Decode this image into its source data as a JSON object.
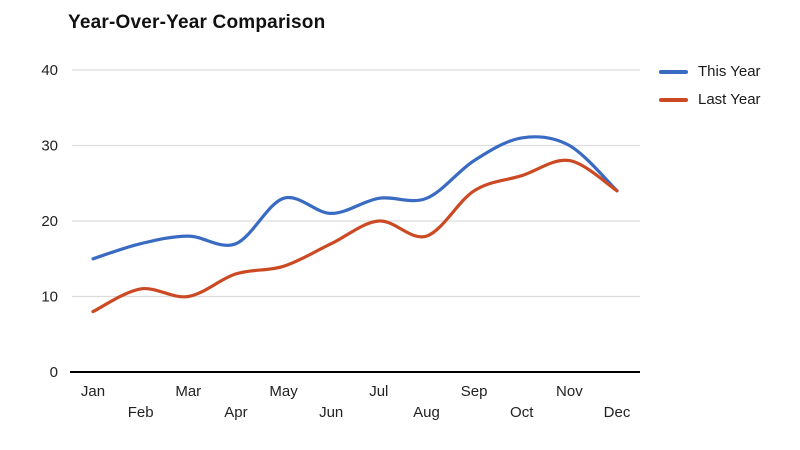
{
  "chart_data": {
    "type": "line",
    "title": "Year-Over-Year Comparison",
    "categories": [
      "Jan",
      "Feb",
      "Mar",
      "Apr",
      "May",
      "Jun",
      "Jul",
      "Aug",
      "Sep",
      "Oct",
      "Nov",
      "Dec"
    ],
    "series": [
      {
        "name": "This Year",
        "color": "#3a6bc3",
        "values": [
          15,
          17,
          18,
          17,
          23,
          21,
          23,
          23,
          28,
          31,
          30,
          24
        ]
      },
      {
        "name": "Last Year",
        "color": "#cb4a24",
        "values": [
          8,
          11,
          10,
          13,
          14,
          17,
          20,
          18,
          24,
          26,
          28,
          24
        ]
      }
    ],
    "y_ticks": [
      0,
      10,
      20,
      30,
      40
    ],
    "ylim": [
      0,
      40
    ],
    "xlabel": "",
    "ylabel": "",
    "grid": true,
    "gridline_color": "#dcdcdc",
    "axis_color": "#000000",
    "curve": "smooth",
    "legend_position": "top-right",
    "x_labels_staggered": true
  }
}
